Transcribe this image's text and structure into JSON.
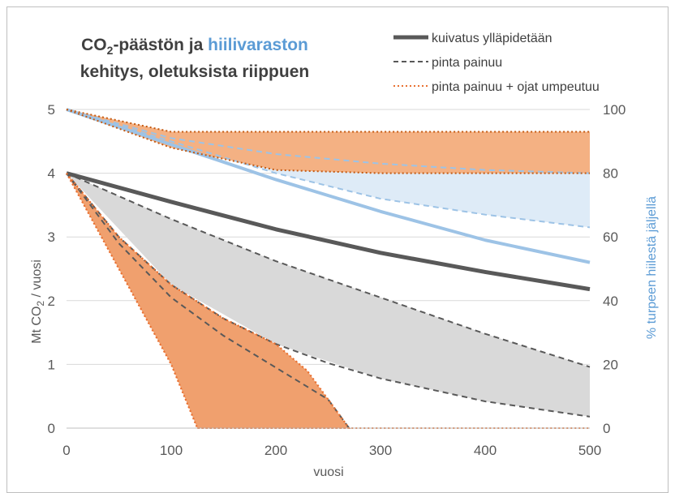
{
  "chart_data": {
    "type": "line",
    "title": {
      "line1_part1": "CO",
      "line1_sub": "2",
      "line1_part2": "-päästön ja ",
      "line1_highlight": "hiilivaraston",
      "line2": "kehitys, oletuksista riippuen"
    },
    "xlabel": "vuosi",
    "ylabel_left": {
      "text": "Mt CO",
      "sub": "2",
      "suffix": " / vuosi"
    },
    "ylabel_right": "% turpeen hiilestä jäljellä",
    "xlim": [
      0,
      500
    ],
    "ylim_left": [
      0,
      5
    ],
    "ylim_right": [
      0,
      100
    ],
    "x_ticks": [
      0,
      100,
      200,
      300,
      400,
      500
    ],
    "y_ticks_left": [
      0,
      1,
      2,
      3,
      4,
      5
    ],
    "y_ticks_right": [
      0,
      20,
      40,
      60,
      80,
      100
    ],
    "colors": {
      "grid": "#d9d9d9",
      "dark_gray": "#595959",
      "blue": "#9dc3e6",
      "blue_fill": "#deebf7",
      "orange_fill": "#f4b183",
      "orange_fill2": "#f0a06e",
      "orange_dots": "#e97132",
      "gray_fill": "#d9d9d9",
      "right_axis_text": "#5b9bd5"
    },
    "legend": [
      {
        "label": "kuivatus ylläpidetään",
        "style": "solid"
      },
      {
        "label": "pinta painuu",
        "style": "dashed"
      },
      {
        "label": "pinta painuu + ojat umpeutuu",
        "style": "dotted"
      }
    ],
    "series": [
      {
        "axis": "left",
        "style": "solid",
        "x": [
          0,
          100,
          200,
          300,
          400,
          500
        ],
        "y": [
          4.0,
          3.55,
          3.12,
          2.75,
          2.45,
          2.18
        ]
      },
      {
        "axis": "left",
        "style": "dashed",
        "x": [
          0,
          100,
          200,
          300,
          400,
          500
        ],
        "y": [
          4.0,
          3.28,
          2.62,
          2.05,
          1.48,
          0.96
        ]
      },
      {
        "axis": "left",
        "style": "dashed",
        "x": [
          0,
          50,
          100,
          150,
          200,
          250,
          300,
          400,
          500
        ],
        "y": [
          4.0,
          3.0,
          2.25,
          1.72,
          1.32,
          1.02,
          0.78,
          0.42,
          0.18
        ]
      },
      {
        "axis": "left",
        "style": "dashed",
        "x": [
          0,
          50,
          100,
          150,
          200,
          250,
          270
        ],
        "y": [
          4.0,
          2.9,
          2.05,
          1.45,
          0.95,
          0.45,
          0.0
        ]
      },
      {
        "axis": "left",
        "style": "dotted",
        "x": [
          0,
          50,
          100,
          150,
          200,
          230,
          250,
          270
        ],
        "y": [
          4.0,
          3.0,
          2.25,
          1.72,
          1.32,
          0.9,
          0.45,
          0.0
        ]
      },
      {
        "axis": "left",
        "style": "dotted",
        "x": [
          0,
          50,
          100,
          125
        ],
        "y": [
          4.0,
          2.5,
          1.0,
          0.0
        ]
      },
      {
        "axis": "right",
        "style": "solid",
        "x": [
          0,
          100,
          200,
          300,
          400,
          500
        ],
        "y": [
          100,
          89,
          78,
          68,
          59,
          52
        ]
      },
      {
        "axis": "right",
        "style": "dashed",
        "x": [
          0,
          100,
          200,
          300,
          400,
          500
        ],
        "y": [
          100,
          90,
          80,
          72,
          67,
          63
        ]
      },
      {
        "axis": "right",
        "style": "dashed",
        "x": [
          0,
          100,
          200,
          300,
          400,
          500
        ],
        "y": [
          100,
          91,
          86,
          83,
          81,
          80
        ]
      },
      {
        "axis": "right",
        "style": "dotted",
        "x": [
          0,
          100,
          200,
          300,
          400,
          500
        ],
        "y": [
          100,
          88,
          81,
          80,
          80,
          80
        ]
      },
      {
        "axis": "right",
        "style": "dotted",
        "x": [
          0,
          100,
          200,
          300,
          400,
          500
        ],
        "y": [
          100,
          93,
          93,
          93,
          93,
          93
        ]
      }
    ],
    "bands": [
      {
        "name": "blue_band",
        "axis": "right",
        "x": [
          0,
          100,
          200,
          300,
          400,
          500
        ],
        "upper": [
          100,
          91,
          86,
          83,
          81,
          80
        ],
        "lower": [
          100,
          90,
          80,
          72,
          67,
          63
        ]
      },
      {
        "name": "orange_upper_band",
        "axis": "right",
        "x": [
          0,
          100,
          200,
          300,
          400,
          500
        ],
        "upper": [
          100,
          93,
          93,
          93,
          93,
          93
        ],
        "lower": [
          100,
          88,
          81,
          80,
          80,
          80
        ]
      },
      {
        "name": "gray_band",
        "axis": "left",
        "x": [
          0,
          100,
          200,
          300,
          400,
          500
        ],
        "upper": [
          4.0,
          3.28,
          2.62,
          2.05,
          1.48,
          0.96
        ],
        "lower": [
          4.0,
          2.25,
          1.32,
          0.78,
          0.42,
          0.18
        ]
      },
      {
        "name": "orange_lower_band",
        "axis": "left",
        "polygon_x": [
          0,
          50,
          100,
          150,
          200,
          230,
          250,
          270,
          125,
          100,
          50
        ],
        "polygon_y": [
          4.0,
          3.0,
          2.25,
          1.72,
          1.32,
          0.9,
          0.45,
          0.0,
          0.0,
          1.0,
          2.5
        ]
      }
    ],
    "grid": true,
    "legend_position": "top-right"
  }
}
